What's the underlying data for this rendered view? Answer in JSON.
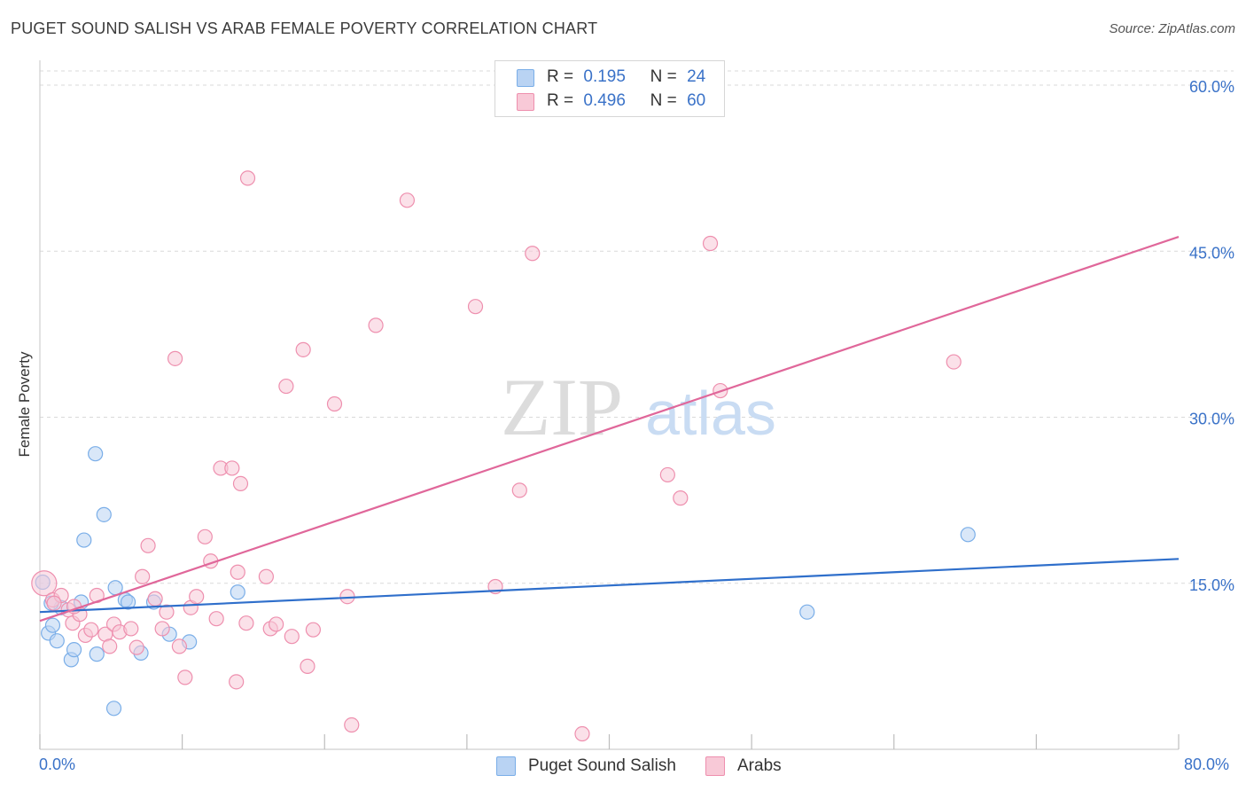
{
  "header": {
    "title": "PUGET SOUND SALISH VS ARAB FEMALE POVERTY CORRELATION CHART",
    "source": "Source: ZipAtlas.com"
  },
  "watermark": {
    "zip": "ZIP",
    "atlas": "atlas"
  },
  "colors": {
    "blue": "#7aaee8",
    "blue_fill": "#b9d3f3",
    "blue_line": "#2f6fcb",
    "pink": "#ee8fae",
    "pink_fill": "#f8c9d7",
    "pink_line": "#e0679a",
    "axis_text": "#3a72c8",
    "grid": "#d9d9d9"
  },
  "legend": {
    "r_label": "R =",
    "n_label": "N =",
    "series": [
      {
        "r": "0.195",
        "n": "24"
      },
      {
        "r": "0.496",
        "n": "60"
      }
    ]
  },
  "chart_data": {
    "type": "scatter",
    "title": "PUGET SOUND SALISH VS ARAB FEMALE POVERTY CORRELATION CHART",
    "xlabel": "",
    "ylabel": "Female Poverty",
    "xlim": [
      0,
      80
    ],
    "ylim": [
      0,
      60
    ],
    "x_tick_labels": [
      "0.0%",
      "80.0%"
    ],
    "y_ticks": [
      15,
      30,
      45,
      60
    ],
    "y_tick_labels": [
      "15.0%",
      "30.0%",
      "45.0%",
      "60.0%"
    ],
    "grid": true,
    "series": [
      {
        "name": "Puget Sound Salish",
        "points": [
          [
            0.2,
            15.1
          ],
          [
            0.6,
            10.5
          ],
          [
            0.9,
            11.2
          ],
          [
            1.2,
            9.8
          ],
          [
            1.5,
            12.8
          ],
          [
            2.2,
            8.1
          ],
          [
            2.4,
            9.0
          ],
          [
            2.9,
            13.3
          ],
          [
            3.1,
            18.9
          ],
          [
            3.9,
            26.7
          ],
          [
            4.0,
            8.6
          ],
          [
            4.5,
            21.2
          ],
          [
            5.2,
            3.7
          ],
          [
            5.3,
            14.6
          ],
          [
            6.0,
            13.5
          ],
          [
            6.2,
            13.3
          ],
          [
            7.1,
            8.7
          ],
          [
            8.0,
            13.3
          ],
          [
            9.1,
            10.4
          ],
          [
            10.5,
            9.7
          ],
          [
            13.9,
            14.2
          ],
          [
            53.9,
            12.4
          ],
          [
            65.2,
            19.4
          ],
          [
            0.8,
            13.2
          ]
        ],
        "trend": {
          "x0": 0,
          "y0": 12.4,
          "x1": 80,
          "y1": 17.2
        }
      },
      {
        "name": "Arabs",
        "points": [
          [
            0.3,
            15.0
          ],
          [
            0.9,
            13.5
          ],
          [
            1.5,
            13.9
          ],
          [
            2.0,
            12.6
          ],
          [
            2.3,
            11.4
          ],
          [
            2.8,
            12.2
          ],
          [
            3.2,
            10.3
          ],
          [
            3.6,
            10.8
          ],
          [
            4.0,
            13.9
          ],
          [
            4.6,
            10.4
          ],
          [
            4.9,
            9.3
          ],
          [
            5.2,
            11.3
          ],
          [
            5.6,
            10.6
          ],
          [
            6.4,
            10.9
          ],
          [
            6.8,
            9.2
          ],
          [
            7.2,
            15.6
          ],
          [
            7.6,
            18.4
          ],
          [
            8.1,
            13.6
          ],
          [
            8.6,
            10.9
          ],
          [
            8.9,
            12.4
          ],
          [
            9.5,
            35.3
          ],
          [
            9.8,
            9.3
          ],
          [
            10.2,
            6.5
          ],
          [
            10.6,
            12.8
          ],
          [
            11.0,
            13.8
          ],
          [
            11.6,
            19.2
          ],
          [
            12.0,
            17.0
          ],
          [
            12.4,
            11.8
          ],
          [
            12.7,
            25.4
          ],
          [
            13.5,
            25.4
          ],
          [
            13.8,
            6.1
          ],
          [
            13.9,
            16.0
          ],
          [
            14.1,
            24.0
          ],
          [
            14.5,
            11.4
          ],
          [
            14.6,
            51.6
          ],
          [
            15.9,
            15.6
          ],
          [
            16.2,
            10.9
          ],
          [
            16.6,
            11.3
          ],
          [
            17.3,
            32.8
          ],
          [
            17.7,
            10.2
          ],
          [
            18.5,
            36.1
          ],
          [
            18.8,
            7.5
          ],
          [
            19.2,
            10.8
          ],
          [
            20.7,
            31.2
          ],
          [
            21.6,
            13.8
          ],
          [
            21.9,
            2.2
          ],
          [
            23.6,
            38.3
          ],
          [
            25.8,
            49.6
          ],
          [
            30.6,
            40.0
          ],
          [
            32.0,
            14.7
          ],
          [
            33.7,
            23.4
          ],
          [
            34.6,
            44.8
          ],
          [
            38.1,
            1.4
          ],
          [
            44.1,
            24.8
          ],
          [
            45.0,
            22.7
          ],
          [
            47.1,
            45.7
          ],
          [
            47.8,
            32.4
          ],
          [
            64.2,
            35.0
          ],
          [
            1.0,
            13.2
          ],
          [
            2.4,
            12.9
          ]
        ],
        "trend": {
          "x0": 0,
          "y0": 11.6,
          "x1": 80,
          "y1": 46.3
        }
      }
    ]
  }
}
